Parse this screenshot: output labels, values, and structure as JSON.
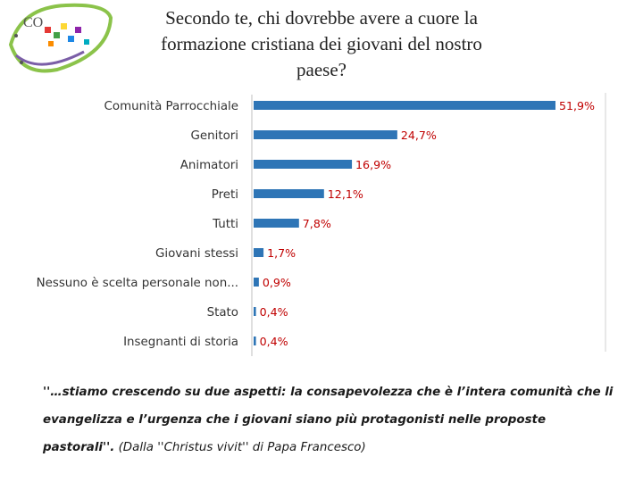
{
  "logo": {
    "text": "CO"
  },
  "title": {
    "line1": "Secondo te, chi dovrebbe avere a cuore la",
    "line2": "formazione cristiana dei giovani del nostro paese?"
  },
  "colors": {
    "bar": "#2e75b6",
    "value_label": "#c00000",
    "category_label": "#333333",
    "divider": "#d0d0d0"
  },
  "chart_data": {
    "type": "bar",
    "orientation": "horizontal",
    "title": "Secondo te, chi dovrebbe avere a cuore la formazione cristiana dei giovani del nostro paese?",
    "categories": [
      "Comunità Parrocchiale",
      "Genitori",
      "Animatori",
      "Preti",
      "Tutti",
      "Giovani stessi",
      "Nessuno è scelta personale non...",
      "Stato",
      "Insegnanti di storia"
    ],
    "values": [
      51.9,
      24.7,
      16.9,
      12.1,
      7.8,
      1.7,
      0.9,
      0.4,
      0.4
    ],
    "value_labels": [
      "51,9%",
      "24,7%",
      "16,9%",
      "12,1%",
      "7,8%",
      "1,7%",
      "0,9%",
      "0,4%",
      "0,4%"
    ],
    "xlim": [
      0,
      51.9
    ],
    "unit": "%"
  },
  "quote": {
    "text": "''…stiamo crescendo su due aspetti: la consapevolezza che è l’intera comunità che li evangelizza e l’urgenza che i giovani siano più protagonisti nelle proposte pastorali''.",
    "source": "(Dalla ''Christus vivit'' di Papa Francesco)"
  }
}
